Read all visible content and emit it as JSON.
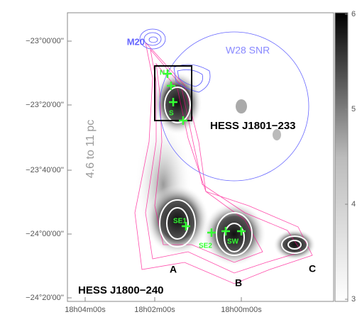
{
  "figure": {
    "dec_ticks": [
      "−23°00'00''",
      "−23°20'00''",
      "−23°40'00''",
      "−24°00'00''",
      "−24°20'00''"
    ],
    "ra_ticks": [
      "18h04m00s",
      "18h02m00s",
      "18h00m00s"
    ],
    "colorbar": {
      "lim": [
        3,
        6
      ],
      "ticks": [
        3,
        4,
        5,
        6
      ]
    },
    "labels": {
      "m20": "M20",
      "w28": "W28 SNR",
      "hess1": "HESS J1801−233",
      "hess2": "HESS J1800−240",
      "a": "A",
      "b": "B",
      "c": "C",
      "n": "N",
      "s": "S",
      "se1": "SE1",
      "se2": "SE2",
      "sw": "SW",
      "scale": "4.6 to 11 pc"
    }
  }
}
